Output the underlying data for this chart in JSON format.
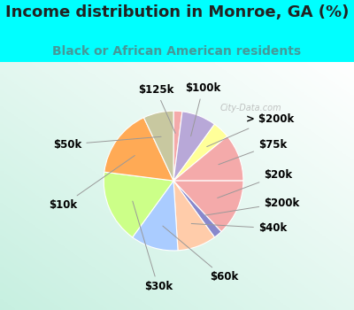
{
  "title": "Income distribution in Monroe, GA (%)",
  "subtitle": "Black or African American residents",
  "background_color": "#00FFFF",
  "watermark": "City-Data.com",
  "slices": [
    {
      "label": "$125k",
      "value": 2,
      "color": "#F4AAAA"
    },
    {
      "label": "$100k",
      "value": 8,
      "color": "#B8A8D8"
    },
    {
      "label": "> $200k",
      "value": 4,
      "color": "#FFFF99"
    },
    {
      "label": "$75k",
      "value": 11,
      "color": "#F4AAAA"
    },
    {
      "label": "$20k",
      "value": 13,
      "color": "#F4AAAA"
    },
    {
      "label": "$200k",
      "value": 2,
      "color": "#8888CC"
    },
    {
      "label": "$40k",
      "value": 9,
      "color": "#FFCCAA"
    },
    {
      "label": "$60k",
      "value": 11,
      "color": "#AACCFF"
    },
    {
      "label": "$30k",
      "value": 17,
      "color": "#CCFF88"
    },
    {
      "label": "$10k",
      "value": 16,
      "color": "#FFAA55"
    },
    {
      "label": "$50k",
      "value": 7,
      "color": "#C8C8A0"
    }
  ],
  "label_fontsize": 8.5,
  "title_fontsize": 13,
  "subtitle_fontsize": 10,
  "title_color": "#222222",
  "subtitle_color": "#449999"
}
